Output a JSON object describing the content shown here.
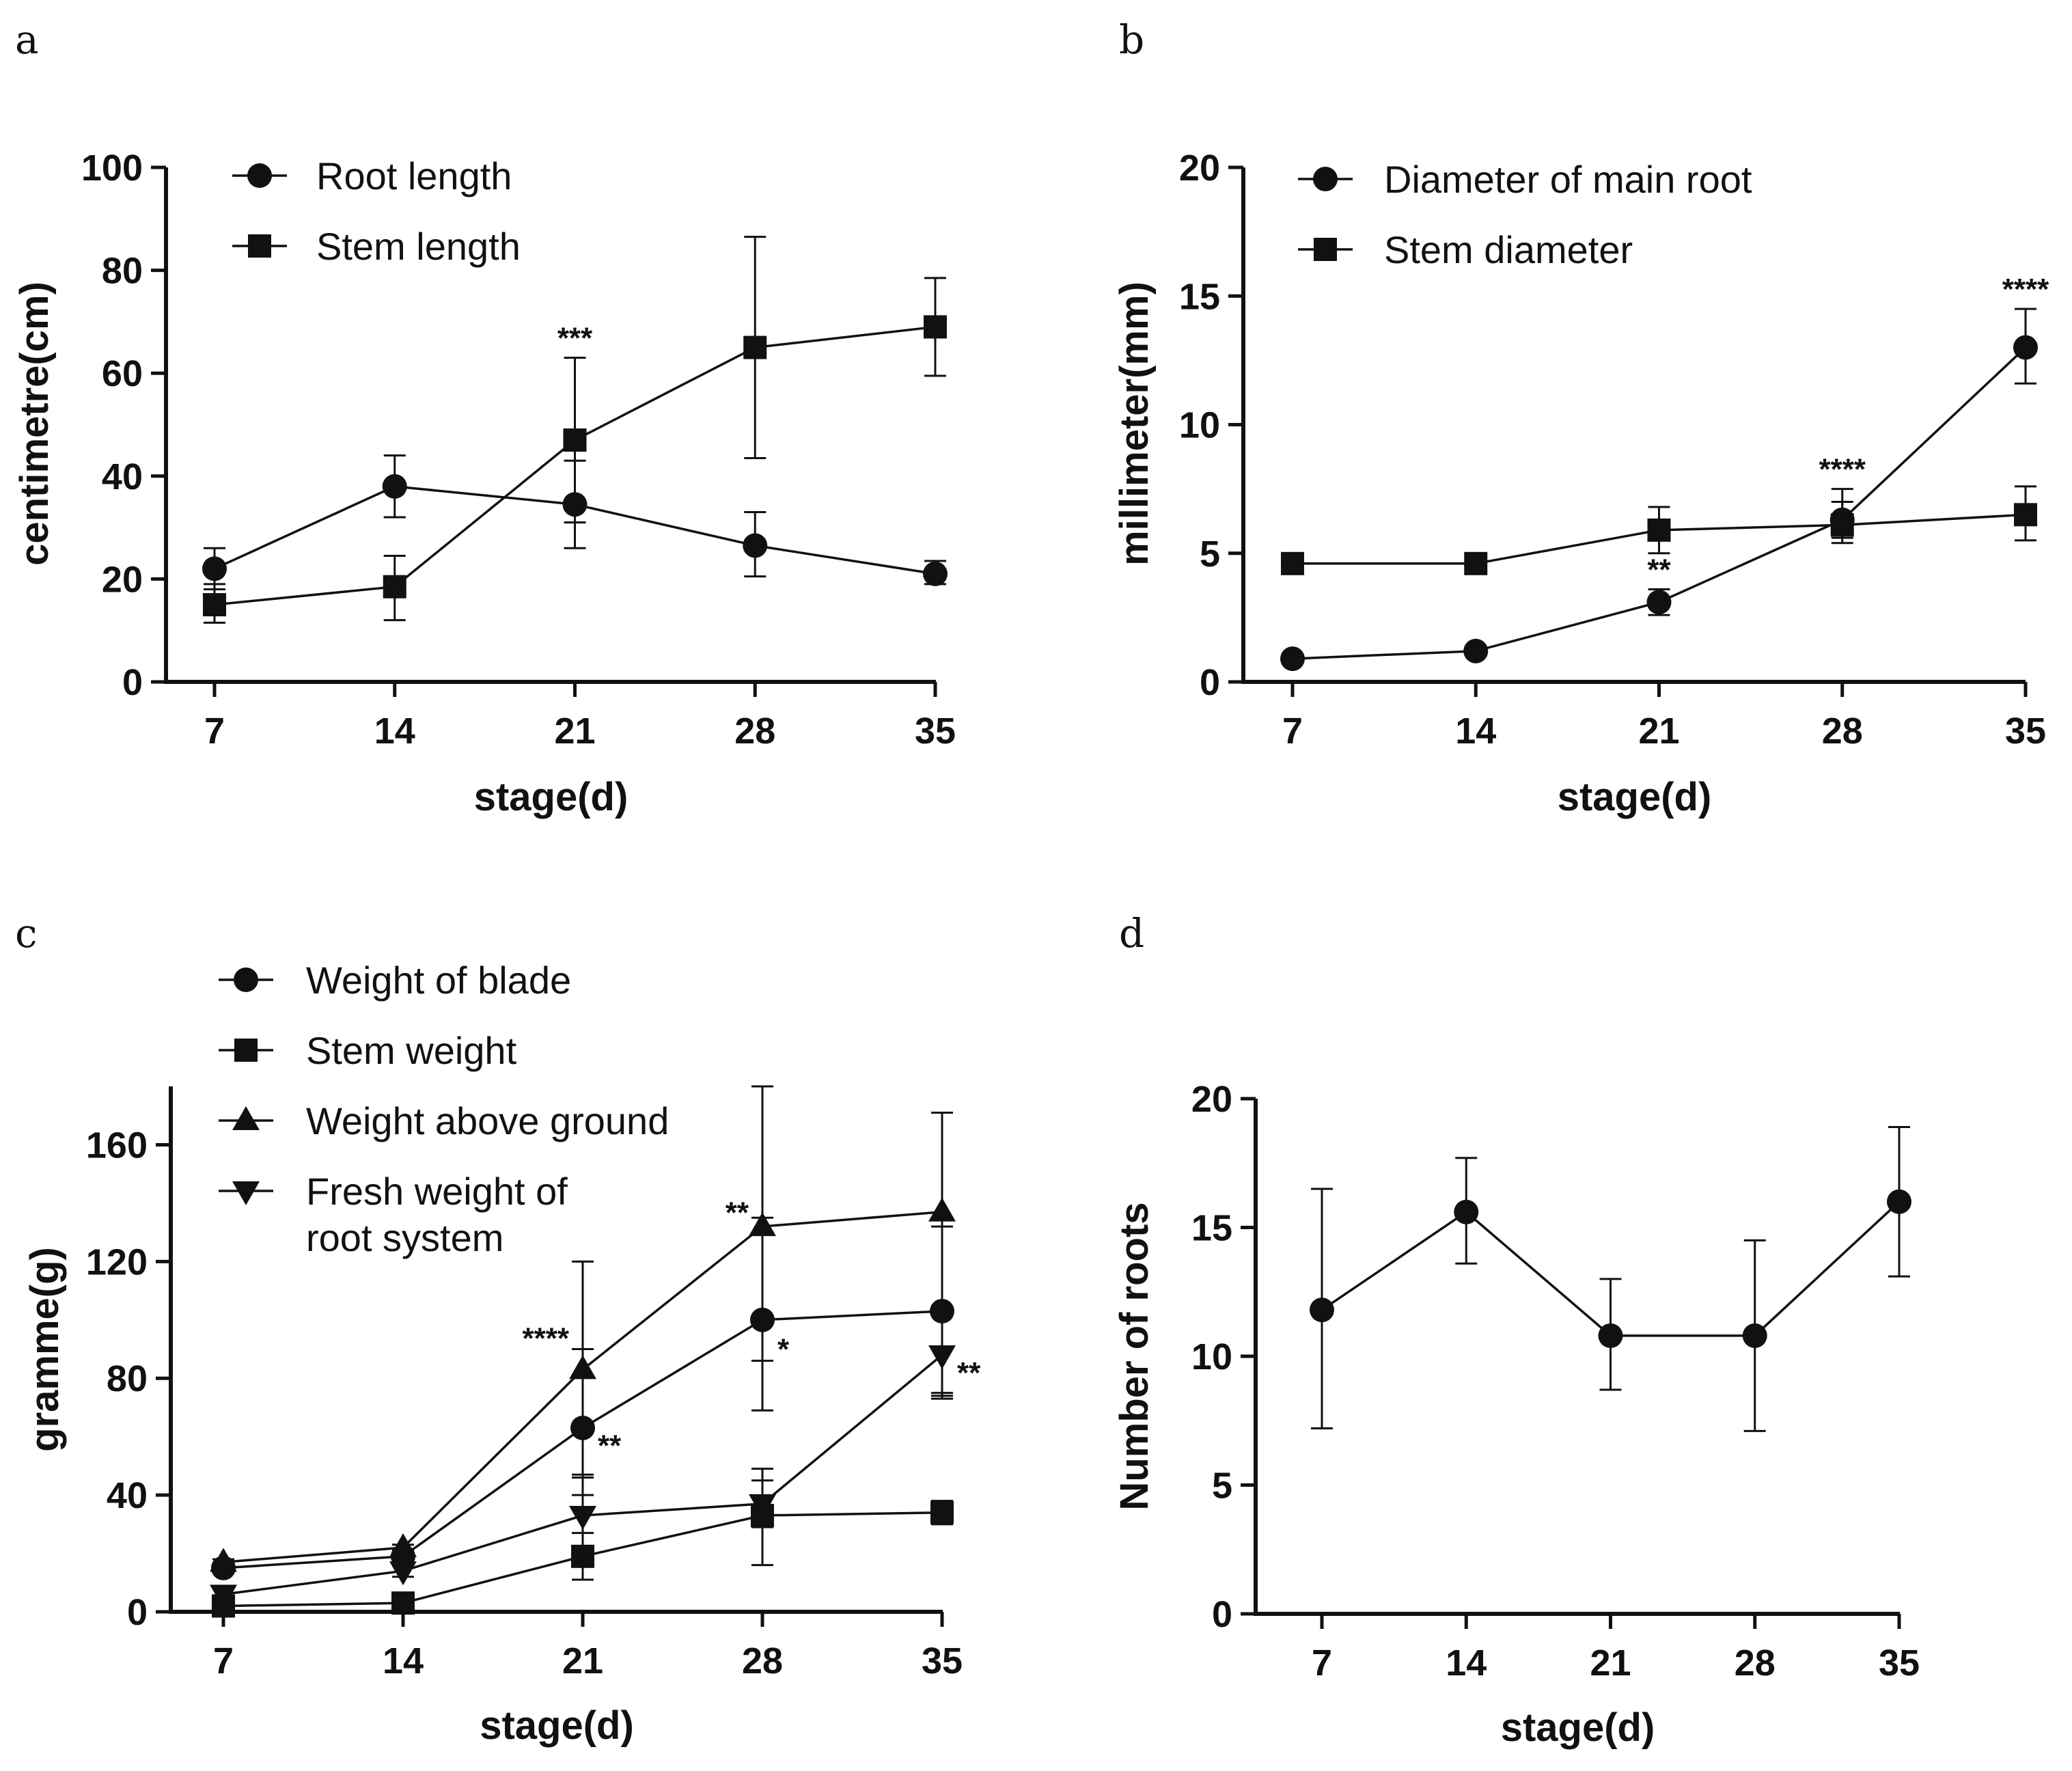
{
  "chart_data": [
    {
      "panel": "a",
      "type": "line",
      "ylabel": "centimetre(cm)",
      "xlabel": "stage(d)",
      "x": [
        7,
        14,
        21,
        28,
        35
      ],
      "ylim": [
        0,
        100
      ],
      "yticks": [
        0,
        20,
        40,
        60,
        80,
        100
      ],
      "series": [
        {
          "name": "Root length",
          "marker": "circle",
          "values": [
            22,
            38,
            34.5,
            26.5,
            21
          ],
          "err_hi": [
            26,
            44,
            43,
            33,
            23.5
          ],
          "err_lo": [
            18,
            32,
            26,
            20.5,
            19
          ]
        },
        {
          "name": "Stem length",
          "marker": "square",
          "values": [
            15,
            18.5,
            47,
            65,
            69
          ],
          "err_hi": [
            19,
            24.5,
            63,
            86.5,
            78.5
          ],
          "err_lo": [
            11.5,
            12,
            31,
            43.5,
            59.5
          ]
        }
      ],
      "annotations": [
        {
          "text": "***",
          "x": 21,
          "y": 63,
          "side": "above"
        }
      ]
    },
    {
      "panel": "b",
      "type": "line",
      "ylabel": "millimeter(mm)",
      "xlabel": "stage(d)",
      "x": [
        7,
        14,
        21,
        28,
        35
      ],
      "ylim": [
        0,
        20
      ],
      "yticks": [
        0,
        5,
        10,
        15,
        20
      ],
      "series": [
        {
          "name": "Diameter of main root",
          "marker": "circle",
          "values": [
            0.9,
            1.2,
            3.1,
            6.3,
            13
          ],
          "err_hi": [
            1.0,
            1.3,
            3.6,
            7.0,
            14.5
          ],
          "err_lo": [
            0.8,
            1.1,
            2.6,
            5.6,
            11.6
          ]
        },
        {
          "name": "Stem diameter",
          "marker": "square",
          "values": [
            4.6,
            4.6,
            5.9,
            6.1,
            6.5
          ],
          "err_hi": [
            4.7,
            4.8,
            6.8,
            7.5,
            7.6
          ],
          "err_lo": [
            4.5,
            4.3,
            5.0,
            5.4,
            5.5
          ]
        }
      ],
      "annotations": [
        {
          "text": "**",
          "x": 21,
          "y": 3.6,
          "side": "above"
        },
        {
          "text": "****",
          "x": 28,
          "y": 7.5,
          "side": "above"
        },
        {
          "text": "****",
          "x": 35,
          "y": 14.5,
          "side": "above"
        }
      ]
    },
    {
      "panel": "c",
      "type": "line",
      "ylabel": "gramme(g)",
      "xlabel": "stage(d)",
      "x": [
        7,
        14,
        21,
        28,
        35
      ],
      "ylim": [
        0,
        180
      ],
      "yticks": [
        0,
        40,
        80,
        120,
        160
      ],
      "series": [
        {
          "name": "Weight of blade",
          "marker": "circle",
          "values": [
            15,
            19,
            63,
            100,
            103
          ],
          "err_hi": [
            16,
            20,
            90,
            135,
            132
          ],
          "err_lo": [
            14,
            18,
            40,
            69,
            73
          ]
        },
        {
          "name": "Stem weight",
          "marker": "square",
          "values": [
            2,
            3,
            19,
            33,
            34
          ],
          "err_hi": [
            3,
            4,
            27,
            49,
            38
          ],
          "err_lo": [
            1,
            2,
            11,
            16,
            30
          ]
        },
        {
          "name": "Weight above ground",
          "marker": "triangle-up",
          "values": [
            17,
            22,
            83,
            132,
            137
          ],
          "err_hi": [
            18,
            23,
            120,
            180,
            171
          ],
          "err_lo": [
            16,
            21,
            46,
            86,
            75
          ]
        },
        {
          "name": "Fresh weight of\nroot system",
          "marker": "triangle-down",
          "values": [
            6,
            14,
            33,
            37,
            88
          ],
          "err_hi": [
            8,
            16,
            47,
            45,
            102
          ],
          "err_lo": [
            4,
            12,
            19,
            29,
            74
          ]
        }
      ],
      "annotations": [
        {
          "text": "****",
          "x": 21,
          "y": 94,
          "side": "left"
        },
        {
          "text": "**",
          "x": 21,
          "y": 60,
          "side": "right"
        },
        {
          "text": "**",
          "x": 28,
          "y": 137,
          "side": "left"
        },
        {
          "text": "*",
          "x": 28,
          "y": 93,
          "side": "right"
        },
        {
          "text": "**",
          "x": 35,
          "y": 85,
          "side": "right"
        }
      ]
    },
    {
      "panel": "d",
      "type": "line",
      "ylabel": "Number of roots",
      "xlabel": "stage(d)",
      "x": [
        7,
        14,
        21,
        28,
        35
      ],
      "ylim": [
        0,
        20
      ],
      "yticks": [
        0,
        5,
        10,
        15,
        20
      ],
      "series": [
        {
          "name": "Number of roots",
          "marker": "circle",
          "values": [
            11.8,
            15.6,
            10.8,
            10.8,
            16
          ],
          "err_hi": [
            16.5,
            17.7,
            13,
            14.5,
            18.9
          ],
          "err_lo": [
            7.2,
            13.6,
            8.7,
            7.1,
            13.1
          ]
        }
      ],
      "annotations": []
    }
  ]
}
